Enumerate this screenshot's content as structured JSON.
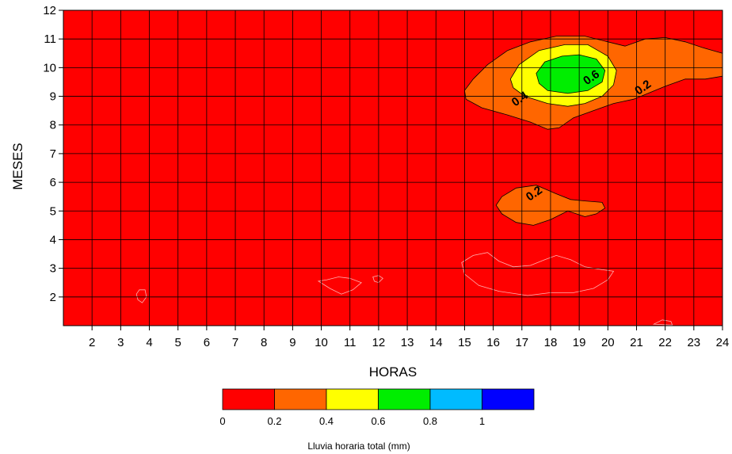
{
  "chart_data": {
    "type": "heatmap",
    "subtype": "filled-contour",
    "xlabel": "HORAS",
    "ylabel": "MESES",
    "xlim": [
      1,
      24
    ],
    "ylim": [
      1,
      12
    ],
    "x_ticks": [
      "2",
      "3",
      "4",
      "5",
      "6",
      "7",
      "8",
      "9",
      "10",
      "11",
      "12",
      "13",
      "14",
      "15",
      "16",
      "17",
      "18",
      "19",
      "20",
      "21",
      "22",
      "23",
      "24"
    ],
    "y_ticks": [
      "2",
      "3",
      "4",
      "5",
      "6",
      "7",
      "8",
      "9",
      "10",
      "11",
      "12"
    ],
    "grid": true,
    "colorbar": {
      "title": "Lluvia horaria total (mm)",
      "bins": [
        {
          "from": 0,
          "to": 0.2,
          "color": "#ff0000"
        },
        {
          "from": 0.2,
          "to": 0.4,
          "color": "#ff6600"
        },
        {
          "from": 0.4,
          "to": 0.6,
          "color": "#ffff00"
        },
        {
          "from": 0.6,
          "to": 0.8,
          "color": "#00ee00"
        },
        {
          "from": 0.8,
          "to": 1.0,
          "color": "#00bbff"
        },
        {
          "from": 1.0,
          "to": 1.2,
          "color": "#0000ff"
        }
      ],
      "tick_labels": [
        "0",
        "0.2",
        "0.4",
        "0.6",
        "0.8",
        "1"
      ]
    },
    "contours": [
      {
        "level": 0.2,
        "fill": "#ff6600",
        "label": "0.2",
        "points": [
          [
            15.0,
            9.2
          ],
          [
            15.3,
            9.6
          ],
          [
            15.8,
            10.1
          ],
          [
            16.5,
            10.6
          ],
          [
            17.3,
            10.9
          ],
          [
            18.2,
            11.1
          ],
          [
            19.2,
            11.1
          ],
          [
            20.0,
            10.9
          ],
          [
            20.6,
            10.75
          ],
          [
            21.3,
            11.0
          ],
          [
            22.0,
            11.05
          ],
          [
            22.7,
            10.9
          ],
          [
            23.3,
            10.7
          ],
          [
            24,
            10.5
          ],
          [
            24,
            9.7
          ],
          [
            23.4,
            9.6
          ],
          [
            22.7,
            9.6
          ],
          [
            22.0,
            9.35
          ],
          [
            21.4,
            9.1
          ],
          [
            20.9,
            8.9
          ],
          [
            20.2,
            8.75
          ],
          [
            19.5,
            8.5
          ],
          [
            18.8,
            8.25
          ],
          [
            18.3,
            7.9
          ],
          [
            17.9,
            7.85
          ],
          [
            17.3,
            8.1
          ],
          [
            16.5,
            8.35
          ],
          [
            15.6,
            8.6
          ],
          [
            15.05,
            8.9
          ]
        ],
        "label_at": [
          21.3,
          9.2
        ]
      },
      {
        "level": 0.2,
        "fill": "#ff6600",
        "label": "0.2",
        "points": [
          [
            16.1,
            5.2
          ],
          [
            16.3,
            5.5
          ],
          [
            16.8,
            5.8
          ],
          [
            17.5,
            5.9
          ],
          [
            18.2,
            5.6
          ],
          [
            18.7,
            5.4
          ],
          [
            19.2,
            5.35
          ],
          [
            19.8,
            5.3
          ],
          [
            19.9,
            5.1
          ],
          [
            19.6,
            4.9
          ],
          [
            19.2,
            4.8
          ],
          [
            18.6,
            5.0
          ],
          [
            18.0,
            4.7
          ],
          [
            17.4,
            4.5
          ],
          [
            16.8,
            4.6
          ],
          [
            16.3,
            4.9
          ]
        ],
        "label_at": [
          17.5,
          5.5
        ]
      },
      {
        "level": 0.4,
        "fill": "#ffff00",
        "label": "0.4",
        "points": [
          [
            16.6,
            9.6
          ],
          [
            16.9,
            10.1
          ],
          [
            17.6,
            10.6
          ],
          [
            18.5,
            10.8
          ],
          [
            19.3,
            10.8
          ],
          [
            20.0,
            10.4
          ],
          [
            20.3,
            9.9
          ],
          [
            20.2,
            9.4
          ],
          [
            19.8,
            9.0
          ],
          [
            19.2,
            8.75
          ],
          [
            18.6,
            8.65
          ],
          [
            17.9,
            8.75
          ],
          [
            17.1,
            9.0
          ],
          [
            16.7,
            9.3
          ]
        ],
        "label_at": [
          17.0,
          8.8
        ]
      },
      {
        "level": 0.6,
        "fill": "#00ee00",
        "label": "0.6",
        "points": [
          [
            17.5,
            9.8
          ],
          [
            17.8,
            10.2
          ],
          [
            18.4,
            10.4
          ],
          [
            19.0,
            10.45
          ],
          [
            19.6,
            10.3
          ],
          [
            19.9,
            9.9
          ],
          [
            19.8,
            9.5
          ],
          [
            19.3,
            9.2
          ],
          [
            18.6,
            9.1
          ],
          [
            17.9,
            9.2
          ],
          [
            17.6,
            9.45
          ]
        ],
        "label_at": [
          19.5,
          9.55
        ]
      }
    ],
    "zero_level_outlines": [
      [
        [
          3.55,
          2.1
        ],
        [
          3.65,
          2.25
        ],
        [
          3.85,
          2.25
        ],
        [
          3.9,
          2.0
        ],
        [
          3.75,
          1.8
        ],
        [
          3.6,
          1.9
        ]
      ],
      [
        [
          9.9,
          2.55
        ],
        [
          10.2,
          2.6
        ],
        [
          10.6,
          2.7
        ],
        [
          11.0,
          2.65
        ],
        [
          11.4,
          2.5
        ],
        [
          11.1,
          2.25
        ],
        [
          10.7,
          2.1
        ],
        [
          10.3,
          2.3
        ]
      ],
      [
        [
          11.8,
          2.7
        ],
        [
          12.0,
          2.75
        ],
        [
          12.15,
          2.65
        ],
        [
          12.0,
          2.5
        ],
        [
          11.85,
          2.55
        ]
      ],
      [
        [
          14.9,
          3.2
        ],
        [
          15.3,
          3.45
        ],
        [
          15.8,
          3.55
        ],
        [
          16.2,
          3.25
        ],
        [
          16.7,
          3.05
        ],
        [
          17.3,
          3.1
        ],
        [
          17.8,
          3.3
        ],
        [
          18.2,
          3.45
        ],
        [
          18.7,
          3.3
        ],
        [
          19.2,
          3.05
        ],
        [
          19.8,
          2.95
        ],
        [
          20.2,
          2.9
        ],
        [
          20.0,
          2.6
        ],
        [
          19.5,
          2.3
        ],
        [
          18.8,
          2.15
        ],
        [
          18.0,
          2.15
        ],
        [
          17.2,
          2.05
        ],
        [
          16.2,
          2.2
        ],
        [
          15.5,
          2.4
        ],
        [
          15.0,
          2.8
        ]
      ],
      [
        [
          21.6,
          1.05
        ],
        [
          21.9,
          1.2
        ],
        [
          22.2,
          1.15
        ],
        [
          22.25,
          1.02
        ]
      ]
    ]
  }
}
